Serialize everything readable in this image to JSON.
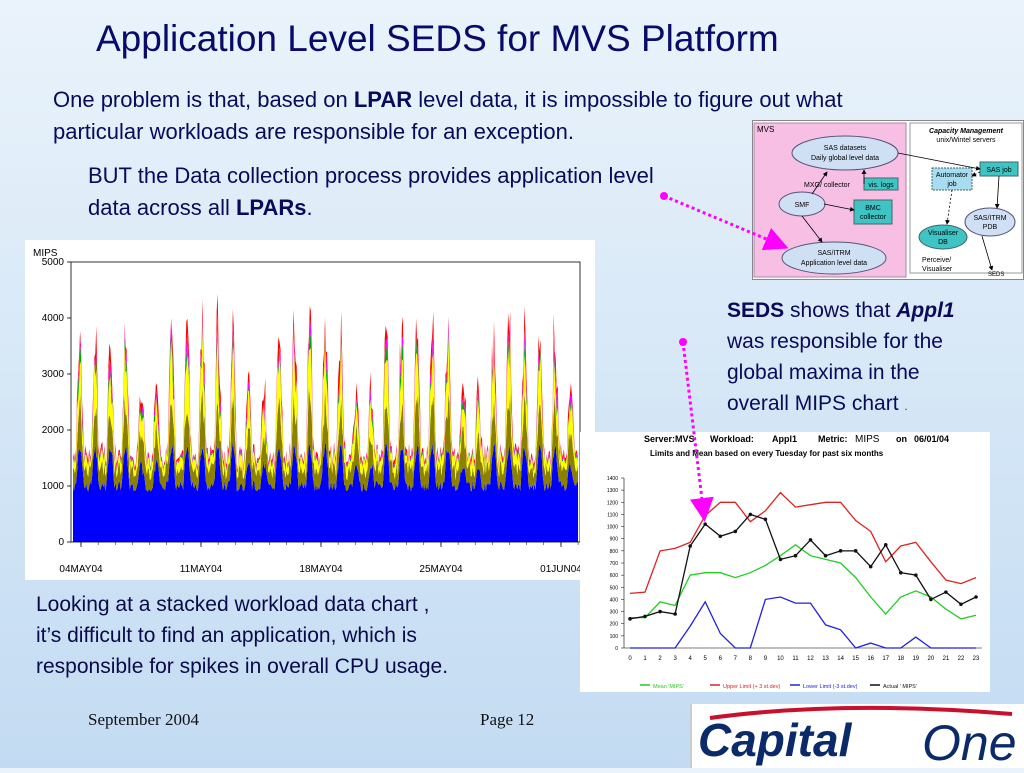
{
  "slide": {
    "title": "Application Level  SEDS for  MVS Platform",
    "para1": {
      "part1": "One problem is that, based on ",
      "bold1": "LPAR",
      "part2": " level data, it is impossible to figure out what",
      "line2": "particular workloads are responsible for an exception."
    },
    "para2": {
      "line1": "BUT the Data collection process provides application level",
      "part1": "data across all ",
      "bold1": "LPARs",
      "part2": "."
    },
    "seds_note": {
      "bold1": "SEDS",
      "part1": " shows that ",
      "boldital": "Appl1",
      "line2": "was responsible for the",
      "line3": "global maxima in the",
      "line4": "overall MIPS chart",
      "dot": "."
    },
    "bottom_note": {
      "line1": "Looking at a stacked workload data chart ,",
      "line2": "it’s difficult to find an application, which is",
      "line3": "responsible for spikes in overall CPU usage."
    },
    "footer": {
      "date": "September 2004",
      "page": "Page 12"
    },
    "logo": {
      "text1": "Capital",
      "text2": "One"
    }
  },
  "diagram": {
    "mvs_label": "MVS",
    "sas_datasets": [
      "SAS datasets",
      "Daily global level data"
    ],
    "mxg": "MXG/ collector",
    "vis_logs": "vis. logs",
    "smf": "SMF",
    "bmc": [
      "BMC",
      "collector"
    ],
    "sas_itrm_app": [
      "SAS/ITRM",
      "Application level data"
    ],
    "cap_mgmt": [
      "Capacity Management",
      "unix/Wintel servers"
    ],
    "sas_job": "SAS job",
    "automator": [
      "Automator",
      "job"
    ],
    "sas_itrm_pdb": [
      "SAS/ITRM",
      "PDB"
    ],
    "visualiser_db": [
      "Visualiser",
      "DB"
    ],
    "perceive": [
      "Perceive/",
      "Visualiser"
    ],
    "seds": "SEDS"
  },
  "chart_data": [
    {
      "type": "area",
      "title": "",
      "ylabel": "MIPS",
      "ylim": [
        0,
        5000
      ],
      "yticks": [
        0,
        1000,
        2000,
        3000,
        4000,
        5000
      ],
      "xticks": [
        "04MAY04",
        "11MAY04",
        "18MAY04",
        "25MAY04",
        "01JUN04"
      ],
      "series_colors": [
        "#0000ff",
        "#8b8000",
        "#ffff00",
        "#00aa00",
        "#ff00ff",
        "#ff0000"
      ]
    },
    {
      "type": "line",
      "header": {
        "server_label": "Server:MVS",
        "workload_label": "Workload:",
        "workload": "Appl1",
        "metric_label": "Metric:",
        "metric": "MIPS",
        "on_label": "on",
        "date": "06/01/04",
        "subtitle": "Limits and Mean based on every Tuesday for past six months"
      },
      "ylim": [
        0,
        1400
      ],
      "yticks": [
        0,
        100,
        200,
        300,
        400,
        500,
        600,
        700,
        800,
        900,
        1000,
        1100,
        1200,
        1300,
        1400
      ],
      "x": [
        0,
        1,
        2,
        3,
        4,
        5,
        6,
        7,
        8,
        9,
        10,
        11,
        12,
        13,
        14,
        15,
        16,
        17,
        18,
        19,
        20,
        21,
        22,
        23
      ],
      "series": [
        {
          "name": "Mean 'MIPS'",
          "color": "#22cc22",
          "values": [
            250,
            250,
            380,
            350,
            600,
            620,
            620,
            580,
            620,
            680,
            760,
            850,
            760,
            730,
            700,
            580,
            420,
            280,
            420,
            470,
            420,
            320,
            240,
            270
          ]
        },
        {
          "name": "Upper Limit (+ 3  st.dev)",
          "color": "#dd2222",
          "values": [
            450,
            460,
            800,
            820,
            870,
            1090,
            1200,
            1200,
            1040,
            1130,
            1280,
            1160,
            1180,
            1200,
            1200,
            1050,
            960,
            710,
            840,
            870,
            710,
            560,
            530,
            580
          ]
        },
        {
          "name": "Lower Limit (-3   st.dev)",
          "color": "#2222dd",
          "values": [
            0,
            0,
            0,
            0,
            180,
            380,
            120,
            0,
            0,
            400,
            420,
            370,
            370,
            190,
            150,
            0,
            40,
            0,
            0,
            90,
            0,
            0,
            0,
            0
          ]
        },
        {
          "name": "Actual ' MIPS'",
          "color": "#111111",
          "values": [
            240,
            260,
            300,
            280,
            840,
            1020,
            920,
            960,
            1100,
            1060,
            730,
            760,
            890,
            760,
            800,
            800,
            670,
            850,
            620,
            600,
            400,
            460,
            360,
            420
          ]
        }
      ]
    }
  ]
}
